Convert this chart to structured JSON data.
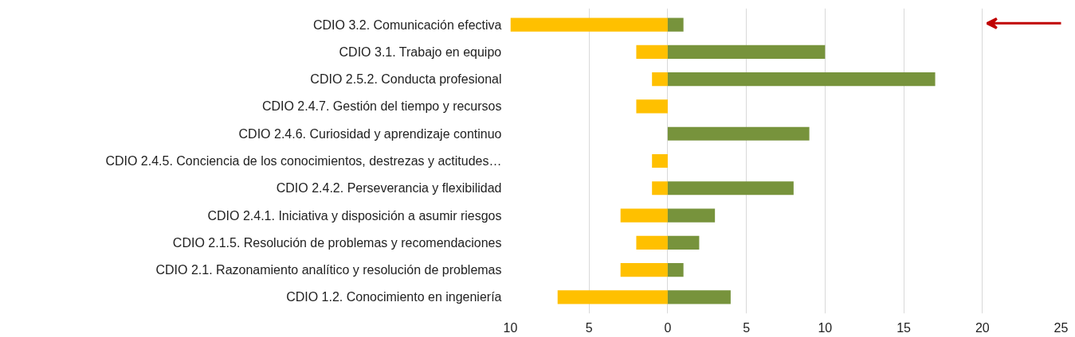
{
  "chart_data": {
    "type": "bar",
    "orientation": "horizontal",
    "stacked": true,
    "categories": [
      "CDIO 3.2. Comunicación efectiva",
      "CDIO 3.1. Trabajo en equipo",
      "CDIO 2.5.2. Conducta profesional",
      "CDIO 2.4.7. Gestión del tiempo y recursos",
      "CDIO 2.4.6. Curiosidad y aprendizaje continuo",
      "CDIO 2.4.5. Conciencia de los conocimientos, destrezas y actitudes…",
      "CDIO 2.4.2. Perseverancia y flexibilidad",
      "CDIO 2.4.1. Iniciativa y disposición a asumir riesgos",
      "CDIO 2.1.5. Resolución de problemas y recomendaciones",
      "CDIO 2.1. Razonamiento analítico y resolución de problemas",
      "CDIO 1.2. Conocimiento en ingeniería"
    ],
    "series": [
      {
        "color": "#ffc000",
        "values": [
          -10,
          -2,
          -1,
          -2,
          null,
          -1,
          -1,
          -3,
          -2,
          -3,
          -7
        ]
      },
      {
        "color": "#77933c",
        "values": [
          1,
          10,
          17,
          null,
          9,
          null,
          8,
          3,
          2,
          1,
          4
        ]
      }
    ],
    "xlim": [
      -10,
      25
    ],
    "xticks": [
      {
        "value": -10,
        "label": "10"
      },
      {
        "value": -5,
        "label": "5"
      },
      0,
      5,
      10,
      15,
      20,
      25
    ],
    "grid": "x"
  }
}
